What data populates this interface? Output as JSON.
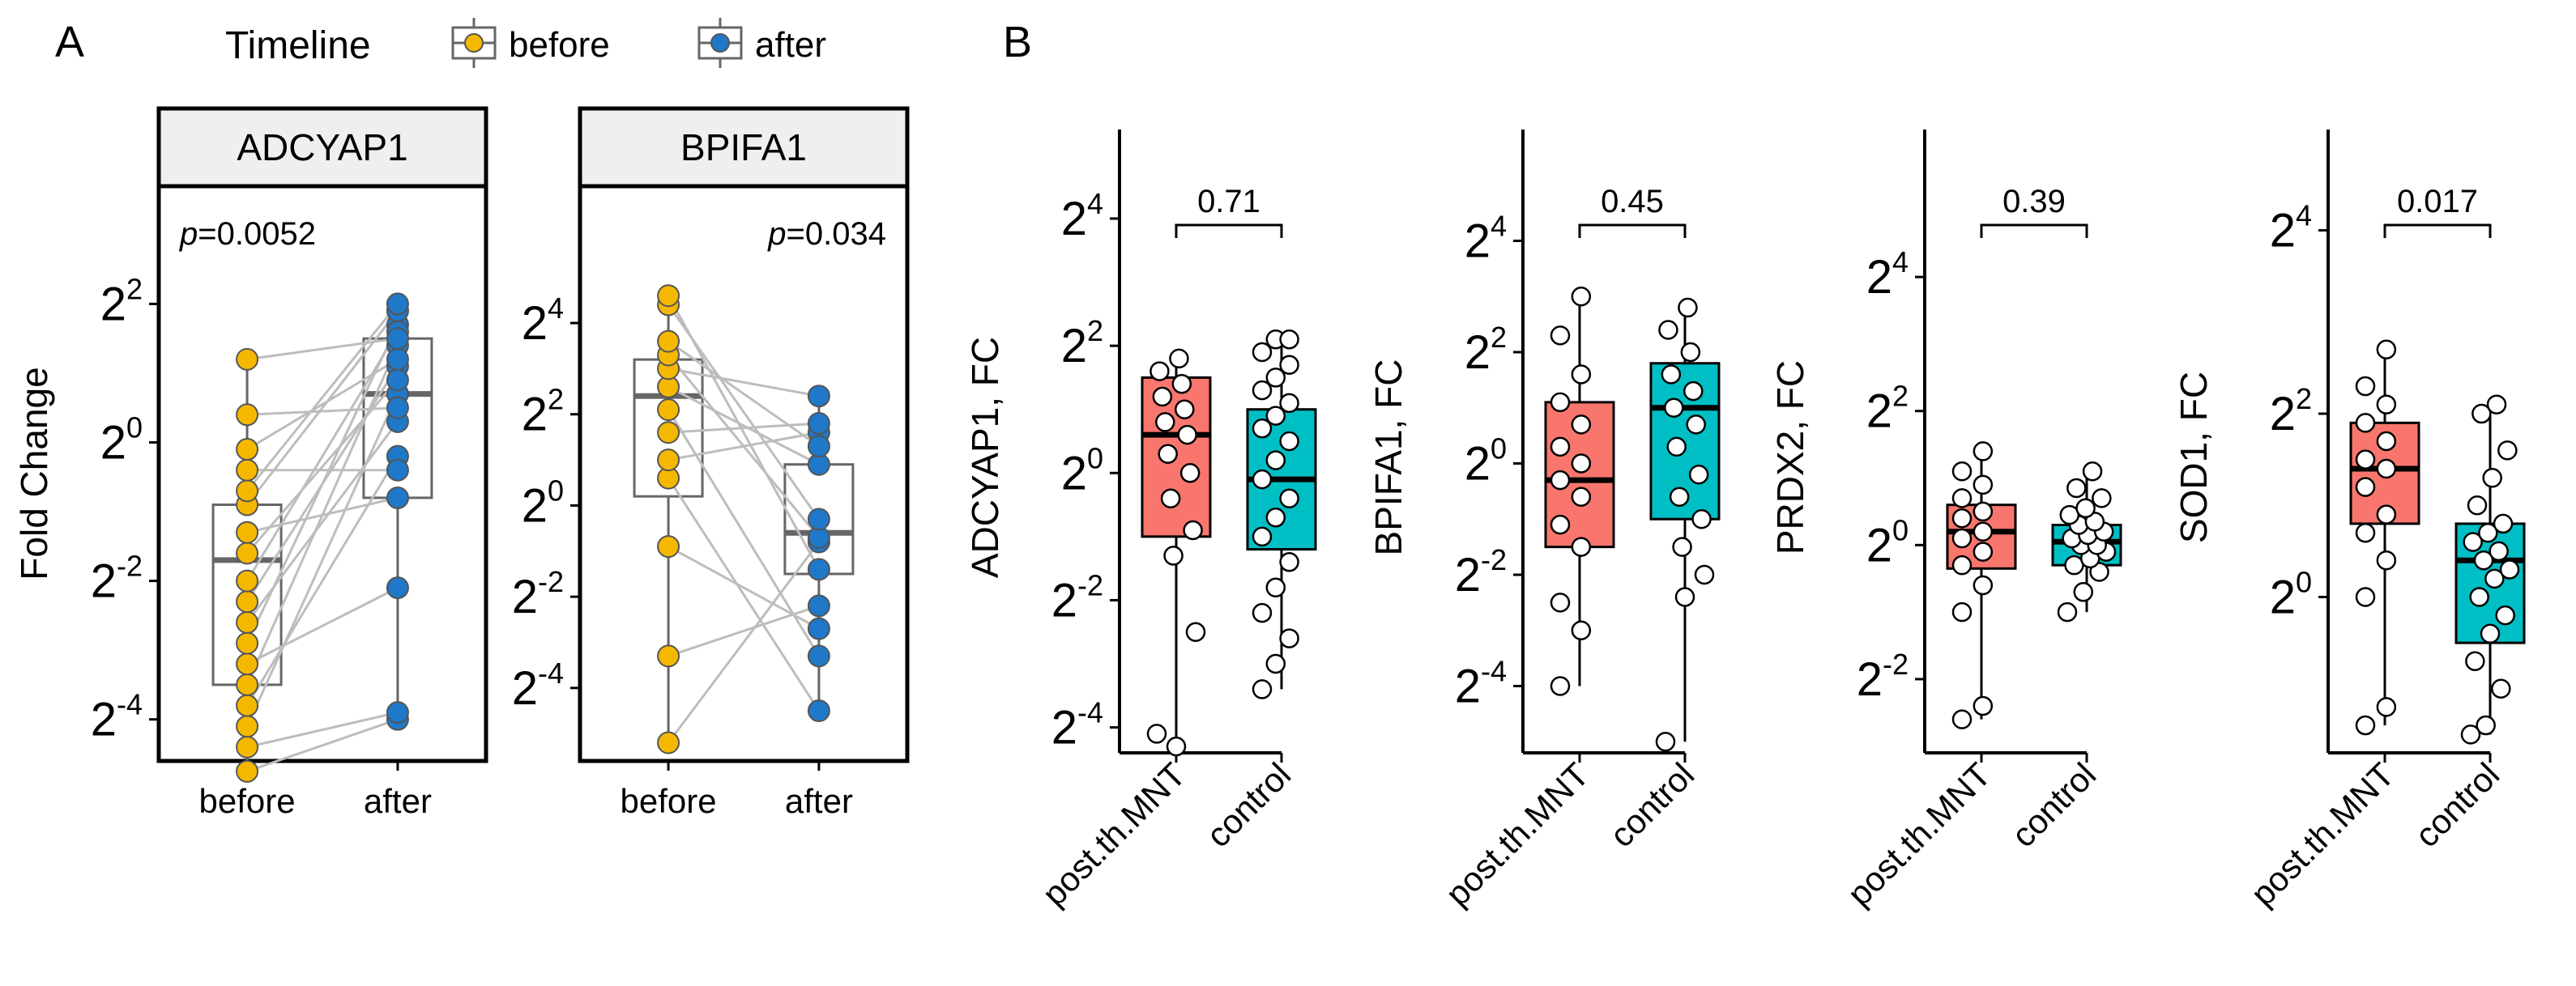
{
  "figure": {
    "panel_a_letter": "A",
    "panel_b_letter": "B",
    "legend": {
      "title": "Timeline",
      "items": [
        {
          "label": "before",
          "color": "#F5B800"
        },
        {
          "label": "after",
          "color": "#1F78C8"
        }
      ]
    }
  },
  "colors": {
    "before": "#F5B800",
    "after": "#1F78C8",
    "post_th_MNT": "#F8766D",
    "control": "#00BFC4",
    "box_outline_a": "#666666",
    "pair_line": "#BDBDBD",
    "strip_bg": "#EFEFEF"
  },
  "chart_data": [
    {
      "type": "box",
      "panel": "A",
      "strip_label": "ADCYAP1",
      "ylabel": "Fold Change",
      "y_scale": "log2",
      "ylim_exponent": [
        -4.6,
        3.7
      ],
      "y_ticks_exponent": [
        -4,
        -2,
        0,
        2
      ],
      "categories": [
        "before",
        "after"
      ],
      "annotation": {
        "prefix": "p",
        "text": "=0.0052",
        "position": "top-left"
      },
      "box_stats_exponent": {
        "before": {
          "q1": -3.5,
          "median": -1.7,
          "q3": -0.9,
          "whisker_low": -4.75,
          "whisker_high": 1.2
        },
        "after": {
          "q1": -0.8,
          "median": 0.7,
          "q3": 1.5,
          "whisker_low": -4.0,
          "whisker_high": 2.0
        }
      },
      "paired_points_exponent": [
        [
          -4.75,
          -4.0
        ],
        [
          -4.4,
          -3.9
        ],
        [
          -4.1,
          0.7
        ],
        [
          -3.8,
          -0.2
        ],
        [
          -3.5,
          1.4
        ],
        [
          -3.2,
          -2.1
        ],
        [
          -2.9,
          1.7
        ],
        [
          -2.6,
          0.3
        ],
        [
          -2.3,
          1.1
        ],
        [
          -2.0,
          1.6
        ],
        [
          -1.6,
          0.9
        ],
        [
          -1.3,
          -0.8
        ],
        [
          -0.9,
          1.9
        ],
        [
          -0.7,
          2.0
        ],
        [
          -0.4,
          -0.4
        ],
        [
          -0.1,
          1.2
        ],
        [
          0.4,
          0.5
        ],
        [
          1.2,
          1.5
        ]
      ]
    },
    {
      "type": "box",
      "panel": "A",
      "strip_label": "BPIFA1",
      "y_scale": "log2",
      "ylim_exponent": [
        -5.6,
        7.0
      ],
      "y_ticks_exponent": [
        -4,
        -2,
        0,
        2,
        4
      ],
      "categories": [
        "before",
        "after"
      ],
      "annotation": {
        "prefix": "p",
        "text": "=0.034",
        "position": "top-right"
      },
      "box_stats_exponent": {
        "before": {
          "q1": 0.2,
          "median": 2.4,
          "q3": 3.2,
          "whisker_low": -5.2,
          "whisker_high": 4.6
        },
        "after": {
          "q1": -1.5,
          "median": -0.6,
          "q3": 0.9,
          "whisker_low": -4.5,
          "whisker_high": 2.4
        }
      },
      "paired_points_exponent": [
        [
          -5.2,
          -0.8
        ],
        [
          -3.3,
          -2.2
        ],
        [
          -0.9,
          -2.7
        ],
        [
          0.6,
          -4.5
        ],
        [
          1.0,
          1.6
        ],
        [
          1.6,
          1.8
        ],
        [
          2.1,
          -3.3
        ],
        [
          2.6,
          0.9
        ],
        [
          3.0,
          2.4
        ],
        [
          3.3,
          -0.7
        ],
        [
          3.6,
          1.3
        ],
        [
          4.4,
          -0.3
        ],
        [
          4.6,
          -1.4
        ]
      ]
    },
    {
      "type": "box",
      "panel": "B",
      "ylabel": "ADCYAP1, FC",
      "y_scale": "log2",
      "ylim_exponent": [
        -4.4,
        5.4
      ],
      "y_ticks_exponent": [
        -4,
        -2,
        0,
        2,
        4
      ],
      "categories": [
        "post.th.MNT",
        "control"
      ],
      "comparison": {
        "label": "0.71"
      },
      "box_stats_exponent": {
        "post.th.MNT": {
          "q1": -1.0,
          "median": 0.6,
          "q3": 1.5,
          "whisker_low": -4.4,
          "whisker_high": 1.9
        },
        "control": {
          "q1": -1.2,
          "median": -0.1,
          "q3": 1.0,
          "whisker_low": -3.4,
          "whisker_high": 2.1
        }
      },
      "points_exponent": {
        "post.th.MNT": [
          -4.1,
          -4.3,
          -2.5,
          -1.3,
          -0.9,
          -0.4,
          0.0,
          0.3,
          0.6,
          0.8,
          1.0,
          1.2,
          1.4,
          1.6,
          1.8
        ],
        "control": [
          -3.4,
          -3.0,
          -2.6,
          -2.2,
          -1.8,
          -1.4,
          -1.0,
          -0.7,
          -0.4,
          -0.1,
          0.2,
          0.5,
          0.7,
          0.9,
          1.1,
          1.3,
          1.5,
          1.7,
          1.9,
          2.1,
          2.1
        ]
      }
    },
    {
      "type": "box",
      "panel": "B",
      "ylabel": "BPIFA1, FC",
      "y_scale": "log2",
      "ylim_exponent": [
        -5.2,
        6.0
      ],
      "y_ticks_exponent": [
        -4,
        -2,
        0,
        2,
        4
      ],
      "categories": [
        "post.th.MNT",
        "control"
      ],
      "comparison": {
        "label": "0.45"
      },
      "box_stats_exponent": {
        "post.th.MNT": {
          "q1": -1.5,
          "median": -0.3,
          "q3": 1.1,
          "whisker_low": -4.0,
          "whisker_high": 3.0
        },
        "control": {
          "q1": -1.0,
          "median": 1.0,
          "q3": 1.8,
          "whisker_low": -5.0,
          "whisker_high": 2.8
        }
      },
      "points_exponent": {
        "post.th.MNT": [
          -4.0,
          -3.0,
          -2.5,
          -1.5,
          -1.1,
          -0.6,
          -0.3,
          0.0,
          0.3,
          0.7,
          1.1,
          1.6,
          2.3,
          3.0
        ],
        "control": [
          -5.0,
          -2.4,
          -2.0,
          -1.5,
          -1.0,
          -0.6,
          -0.2,
          0.3,
          0.7,
          1.0,
          1.3,
          1.6,
          2.0,
          2.4,
          2.8
        ]
      }
    },
    {
      "type": "box",
      "panel": "B",
      "ylabel": "PRDX2, FC",
      "y_scale": "log2",
      "ylim_exponent": [
        -3.1,
        6.2
      ],
      "y_ticks_exponent": [
        -2,
        0,
        2,
        4
      ],
      "categories": [
        "post.th.MNT",
        "control"
      ],
      "comparison": {
        "label": "0.39"
      },
      "box_stats_exponent": {
        "post.th.MNT": {
          "q1": -0.35,
          "median": 0.2,
          "q3": 0.6,
          "whisker_low": -2.6,
          "whisker_high": 1.4
        },
        "control": {
          "q1": -0.3,
          "median": 0.05,
          "q3": 0.3,
          "whisker_low": -1.0,
          "whisker_high": 1.1
        }
      },
      "points_exponent": {
        "post.th.MNT": [
          -2.6,
          -2.4,
          -1.0,
          -0.6,
          -0.3,
          -0.1,
          0.1,
          0.2,
          0.4,
          0.5,
          0.7,
          0.9,
          1.1,
          1.4
        ],
        "control": [
          -1.0,
          -0.7,
          -0.4,
          -0.3,
          -0.2,
          -0.1,
          0.0,
          0.0,
          0.1,
          0.15,
          0.2,
          0.3,
          0.35,
          0.45,
          0.55,
          0.7,
          0.85,
          1.1
        ]
      }
    },
    {
      "type": "box",
      "panel": "B",
      "ylabel": "SOD1, FC",
      "y_scale": "log2",
      "ylim_exponent": [
        -1.7,
        5.1
      ],
      "y_ticks_exponent": [
        0,
        2,
        4
      ],
      "categories": [
        "post.th.MNT",
        "control"
      ],
      "comparison": {
        "label": "0.017"
      },
      "box_stats_exponent": {
        "post.th.MNT": {
          "q1": 0.8,
          "median": 1.4,
          "q3": 1.9,
          "whisker_low": -1.4,
          "whisker_high": 2.7
        },
        "control": {
          "q1": -0.5,
          "median": 0.4,
          "q3": 0.8,
          "whisker_low": -1.5,
          "whisker_high": 2.1
        }
      },
      "points_exponent": {
        "post.th.MNT": [
          -1.4,
          -1.2,
          0.0,
          0.4,
          0.7,
          0.9,
          1.2,
          1.4,
          1.5,
          1.7,
          1.9,
          2.1,
          2.3,
          2.7
        ],
        "control": [
          -1.5,
          -1.4,
          -1.0,
          -0.7,
          -0.4,
          -0.2,
          0.0,
          0.2,
          0.3,
          0.4,
          0.5,
          0.6,
          0.7,
          0.8,
          1.0,
          1.3,
          1.6,
          2.0,
          2.1
        ]
      }
    }
  ]
}
